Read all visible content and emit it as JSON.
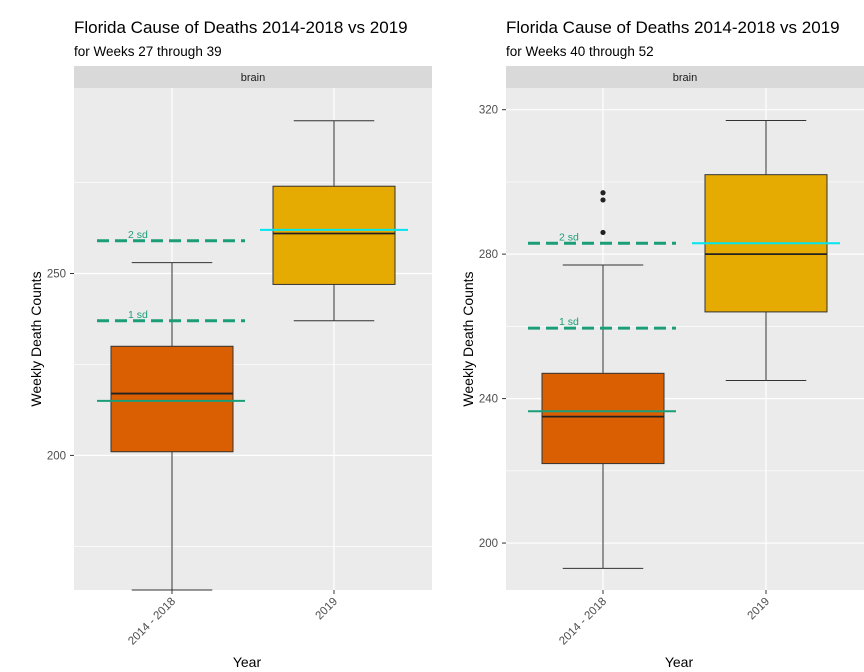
{
  "chart_data": [
    {
      "type": "boxplot",
      "title": "Florida Cause of Deaths  2014-2018 vs 2019",
      "subtitle": "for Weeks 27 through 39",
      "facet": "brain",
      "xlabel": "Year",
      "ylabel": "Weekly Death Counts",
      "ylim": [
        163,
        301
      ],
      "yticks": [
        200,
        250
      ],
      "categories": [
        "2014 - 2018",
        "2019"
      ],
      "boxes": [
        {
          "category": "2014 - 2018",
          "min": 163,
          "q1": 201,
          "median": 217,
          "q3": 230,
          "max": 253,
          "outliers": [],
          "color": "#d95f02"
        },
        {
          "category": "2019",
          "min": 237,
          "q1": 247,
          "median": 261,
          "q3": 274,
          "max": 292,
          "outliers": [],
          "color": "#e6ab02"
        }
      ],
      "mean_2014_2018": 215,
      "mean_2019": 262,
      "sd_lines": [
        {
          "label": "1 sd",
          "value": 237
        },
        {
          "label": "2 sd",
          "value": 259
        }
      ],
      "grid": true
    },
    {
      "type": "boxplot",
      "title": "Florida Cause of Deaths  2014-2018 vs 2019",
      "subtitle": "for Weeks 40 through 52",
      "facet": "brain",
      "xlabel": "Year",
      "ylabel": "Weekly Death Counts",
      "ylim": [
        187,
        326
      ],
      "yticks": [
        200,
        240,
        280,
        320
      ],
      "categories": [
        "2014 - 2018",
        "2019"
      ],
      "boxes": [
        {
          "category": "2014 - 2018",
          "min": 193,
          "q1": 222,
          "median": 235,
          "q3": 247,
          "max": 277,
          "outliers": [
            286,
            295,
            297
          ],
          "color": "#d95f02"
        },
        {
          "category": "2019",
          "min": 245,
          "q1": 264,
          "median": 280,
          "q3": 302,
          "max": 317,
          "outliers": [],
          "color": "#e6ab02"
        }
      ],
      "mean_2014_2018": 236.5,
      "mean_2019": 283,
      "sd_lines": [
        {
          "label": "1 sd",
          "value": 259.5
        },
        {
          "label": "2 sd",
          "value": 283
        }
      ],
      "grid": true
    }
  ],
  "colors": {
    "panel_bg": "#ebebeb",
    "strip_bg": "#d9d9d9",
    "grid": "#ffffff",
    "mean_2014_2018": "#1b9e77",
    "mean_2019": "#00e5ee",
    "sd_line": "#1b9e77"
  }
}
